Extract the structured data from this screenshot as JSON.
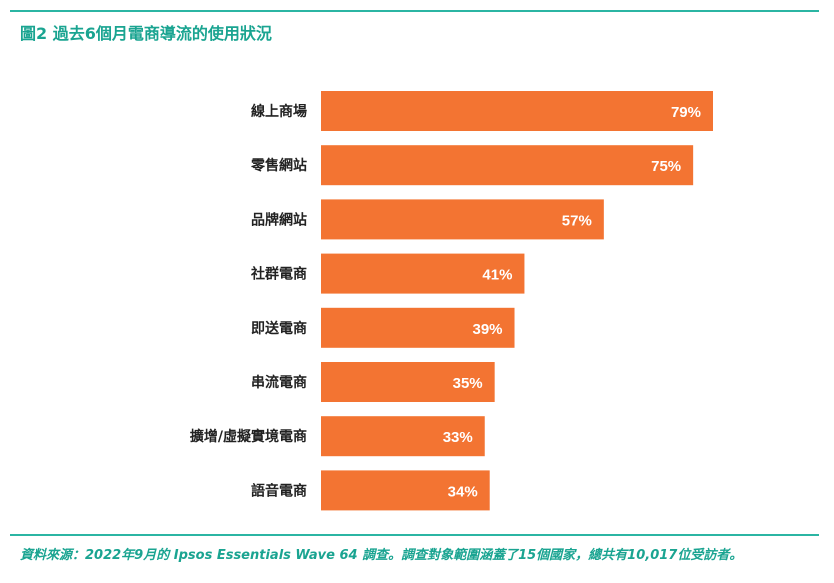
{
  "figure": {
    "number": "圖2",
    "title": "過去6個月電商導流的使用狀況"
  },
  "chart_data": {
    "type": "bar",
    "orientation": "horizontal",
    "categories": [
      "線上商場",
      "零售網站",
      "品牌網站",
      "社群電商",
      "即送電商",
      "串流電商",
      "擴增/虛擬實境電商",
      "語音電商"
    ],
    "values": [
      79,
      75,
      57,
      41,
      39,
      35,
      33,
      34
    ],
    "value_labels": [
      "79%",
      "75%",
      "57%",
      "41%",
      "39%",
      "35%",
      "33%",
      "34%"
    ],
    "title": "過去6個月電商導流的使用狀況",
    "xlabel": "",
    "ylabel": "",
    "xlim": [
      0,
      79
    ],
    "grid": false,
    "bar_color": "#f37432",
    "label_color": "#ffffff"
  },
  "source": "資料來源：2022年9月的 Ipsos Essentials Wave 64 調查。調查對象範圍涵蓋了15個國家，總共有10,017位受訪者。",
  "colors": {
    "accent": "#1aa491",
    "rule": "#2bb5a3",
    "bar": "#f37432"
  }
}
